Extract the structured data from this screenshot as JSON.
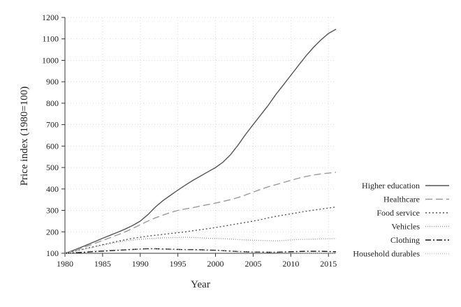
{
  "chart_data": {
    "type": "line",
    "title": "",
    "xlabel": "Year",
    "ylabel": "Price index (1980=100)",
    "xlim": [
      1980,
      2016
    ],
    "ylim": [
      100,
      1200
    ],
    "x_ticks": [
      1980,
      1985,
      1990,
      1995,
      2000,
      2005,
      2010,
      2015
    ],
    "y_ticks": [
      100,
      200,
      300,
      400,
      500,
      600,
      700,
      800,
      900,
      1000,
      1100,
      1200
    ],
    "grid": true,
    "legend_position": "right",
    "x": [
      1980,
      1981,
      1982,
      1983,
      1984,
      1985,
      1986,
      1987,
      1988,
      1989,
      1990,
      1991,
      1992,
      1993,
      1994,
      1995,
      1996,
      1997,
      1998,
      1999,
      2000,
      2001,
      2002,
      2003,
      2004,
      2005,
      2006,
      2007,
      2008,
      2009,
      2010,
      2011,
      2012,
      2013,
      2014,
      2015,
      2016
    ],
    "series": [
      {
        "name": "Higher education",
        "color": "#555555",
        "dash": "",
        "values": [
          100,
          112,
          126,
          140,
          155,
          170,
          184,
          198,
          213,
          230,
          250,
          280,
          315,
          345,
          370,
          395,
          418,
          440,
          460,
          480,
          500,
          525,
          560,
          605,
          655,
          700,
          745,
          790,
          840,
          885,
          930,
          975,
          1020,
          1060,
          1095,
          1125,
          1145
        ]
      },
      {
        "name": "Healthcare",
        "color": "#999999",
        "dash": "10,5",
        "values": [
          100,
          110,
          122,
          134,
          147,
          160,
          173,
          186,
          200,
          216,
          233,
          250,
          265,
          278,
          290,
          300,
          307,
          313,
          320,
          327,
          334,
          342,
          350,
          360,
          372,
          385,
          398,
          410,
          420,
          430,
          440,
          450,
          458,
          465,
          470,
          474,
          478
        ]
      },
      {
        "name": "Food service",
        "color": "#555555",
        "dash": "2,3",
        "values": [
          100,
          108,
          116,
          124,
          132,
          140,
          148,
          156,
          163,
          170,
          175,
          180,
          184,
          188,
          192,
          196,
          200,
          205,
          210,
          215,
          220,
          226,
          232,
          238,
          244,
          250,
          257,
          265,
          272,
          278,
          284,
          290,
          296,
          301,
          306,
          311,
          316
        ]
      },
      {
        "name": "Vehicles",
        "color": "#999999",
        "dash": "1,2",
        "values": [
          100,
          107,
          115,
          122,
          130,
          138,
          145,
          152,
          158,
          162,
          165,
          168,
          170,
          172,
          173,
          174,
          175,
          174,
          172,
          170,
          169,
          168,
          166,
          164,
          162,
          161,
          160,
          159,
          158,
          160,
          162,
          164,
          165,
          166,
          167,
          168,
          169
        ]
      },
      {
        "name": "Clothing",
        "color": "#111111",
        "dash": "8,3,2,3",
        "values": [
          100,
          102,
          104,
          106,
          108,
          110,
          112,
          114,
          116,
          118,
          120,
          121,
          121,
          120,
          119,
          118,
          117,
          117,
          116,
          115,
          114,
          112,
          110,
          108,
          107,
          106,
          106,
          105,
          105,
          106,
          107,
          108,
          109,
          109,
          109,
          108,
          107
        ]
      },
      {
        "name": "Household durables",
        "color": "#c8c8c8",
        "dash": "1,2",
        "values": [
          100,
          104,
          107,
          110,
          112,
          114,
          116,
          117,
          118,
          119,
          120,
          120,
          120,
          119,
          118,
          117,
          116,
          115,
          114,
          113,
          112,
          111,
          110,
          109,
          108,
          107,
          106,
          105,
          104,
          103,
          102,
          102,
          101,
          101,
          101,
          101,
          101
        ]
      }
    ]
  }
}
